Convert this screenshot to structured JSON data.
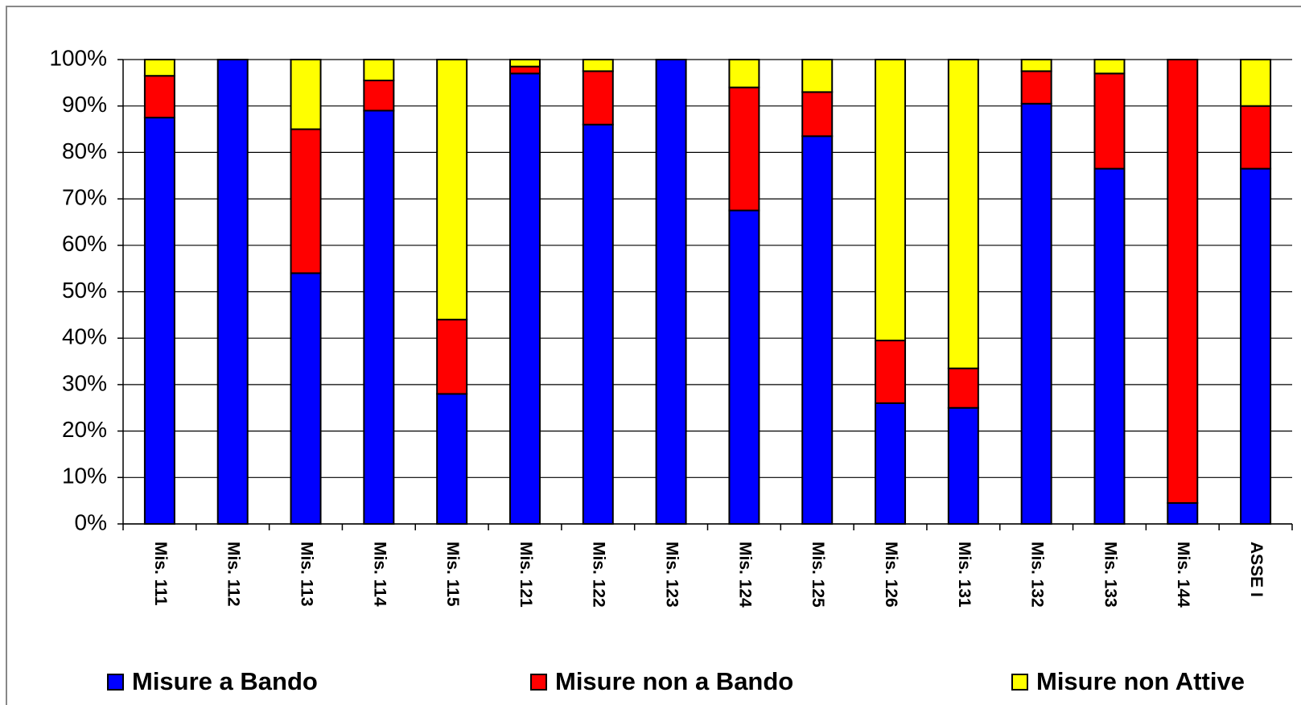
{
  "chart_data": {
    "type": "stacked_bar",
    "categories": [
      "Mis. 111",
      "Mis. 112",
      "Mis. 113",
      "Mis. 114",
      "Mis. 115",
      "Mis. 121",
      "Mis. 122",
      "Mis. 123",
      "Mis. 124",
      "Mis. 125",
      "Mis. 126",
      "Mis. 131",
      "Mis. 132",
      "Mis. 133",
      "Mis. 144",
      "ASSE I"
    ],
    "series": [
      {
        "name": "Misure a Bando",
        "color": "#0000ff",
        "values": [
          87.5,
          100,
          54,
          89,
          28,
          97,
          86,
          100,
          67.5,
          83.5,
          26,
          25,
          90.5,
          76.5,
          4.5,
          76.5
        ]
      },
      {
        "name": "Misure non a Bando",
        "color": "#ff0000",
        "values": [
          9,
          0,
          31,
          6.5,
          16,
          1.5,
          11.5,
          0,
          26.5,
          9.5,
          13.5,
          8.5,
          7,
          20.5,
          95.5,
          13.5
        ]
      },
      {
        "name": "Misure non Attive",
        "color": "#ffff00",
        "values": [
          3.5,
          0,
          15,
          4.5,
          56,
          1.5,
          2.5,
          0,
          6,
          7,
          60.5,
          66.5,
          2.5,
          3,
          0,
          10
        ]
      }
    ],
    "ylim": [
      0,
      100
    ],
    "yticks": [
      {
        "value": 0,
        "label": "0%"
      },
      {
        "value": 10,
        "label": "10%"
      },
      {
        "value": 20,
        "label": "20%"
      },
      {
        "value": 30,
        "label": "30%"
      },
      {
        "value": 40,
        "label": "40%"
      },
      {
        "value": 50,
        "label": "50%"
      },
      {
        "value": 60,
        "label": "60%"
      },
      {
        "value": 70,
        "label": "70%"
      },
      {
        "value": 80,
        "label": "80%"
      },
      {
        "value": 90,
        "label": "90%"
      },
      {
        "value": 100,
        "label": "100%"
      }
    ],
    "grid": true,
    "legend": "bottom"
  }
}
